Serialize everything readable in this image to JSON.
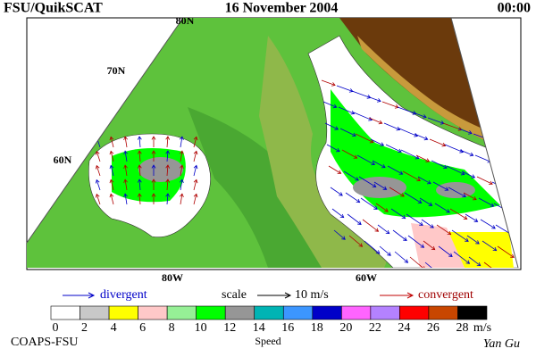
{
  "header": {
    "left": "FSU/QuikSCAT",
    "center": "16 November 2004",
    "right": "00:00"
  },
  "map": {
    "lat_labels": [
      "80N",
      "70N",
      "60N"
    ],
    "lon_labels": [
      "80W",
      "60W"
    ]
  },
  "legend": {
    "divergent": "divergent",
    "scale": "scale",
    "scale_value": "10 m/s",
    "convergent": "convergent"
  },
  "colorbar": {
    "ticks": [
      0,
      2,
      4,
      6,
      8,
      10,
      12,
      14,
      16,
      18,
      20,
      22,
      24,
      26,
      28
    ],
    "unit": "m/s",
    "label": "Speed",
    "colors": [
      "#ffffff",
      "#c8c8c8",
      "#ffff00",
      "#ffc8c8",
      "#96f096",
      "#00ff00",
      "#969696",
      "#00b4b4",
      "#3c96ff",
      "#0000c8",
      "#ff64ff",
      "#b482ff",
      "#ff0000",
      "#c84600",
      "#000000"
    ]
  },
  "footer": {
    "left": "COAPS-FSU",
    "right": "Yan Gu"
  }
}
